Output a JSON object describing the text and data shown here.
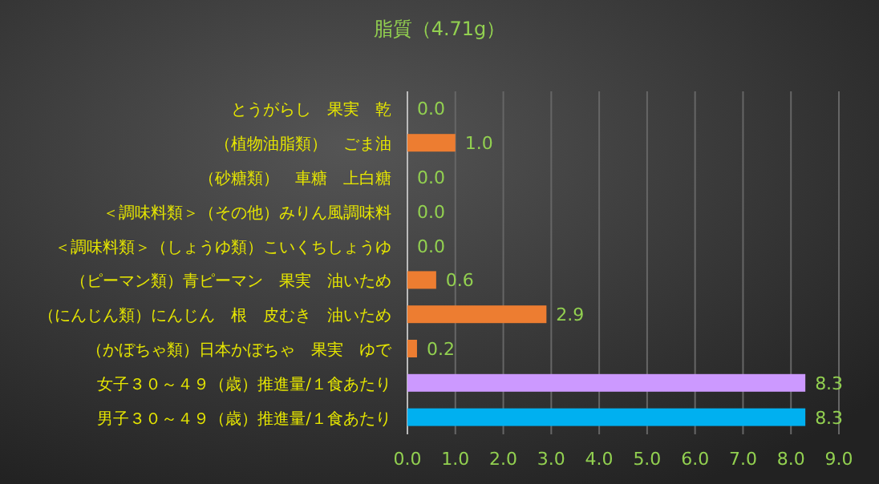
{
  "chart_data": {
    "type": "bar",
    "orientation": "horizontal",
    "title": "脂質（4.71g）",
    "categories": [
      "とうがらし　果実　乾",
      "（植物油脂類）　ごま油",
      "（砂糖類）　車糖　上白糖",
      "＜調味料類＞（その他）みりん風調味料",
      "＜調味料類＞（しょうゆ類）こいくちしょうゆ",
      "（ピーマン類）青ピーマン　果実　油いため",
      "（にんじん類）にんじん　根　皮むき　油いため",
      "（かぼちゃ類）日本かぼちゃ　果実　ゆで",
      "女子３０～４９（歳）推進量/１食あたり",
      "男子３０～４９（歳）推進量/１食あたり"
    ],
    "values": [
      0,
      1.0,
      0,
      0,
      0,
      0.6,
      2.9,
      0.2,
      8.3,
      8.3
    ],
    "colors": [
      "#ed7d31",
      "#ed7d31",
      "#ed7d31",
      "#ed7d31",
      "#ed7d31",
      "#ed7d31",
      "#ed7d31",
      "#ed7d31",
      "#cc99ff",
      "#00b0f0"
    ],
    "value_labels": [
      "0.0",
      "1.0",
      "0.0",
      "0.0",
      "0.0",
      "0.6",
      "2.9",
      "0.2",
      "8.3",
      "8.3"
    ],
    "xlim": [
      0,
      9
    ],
    "xticks": [
      {
        "value": 0,
        "label": "0.0"
      },
      {
        "value": 1,
        "label": "1.0"
      },
      {
        "value": 2,
        "label": "2.0"
      },
      {
        "value": 3,
        "label": "3.0"
      },
      {
        "value": 4,
        "label": "4.0"
      },
      {
        "value": 5,
        "label": "5.0"
      },
      {
        "value": 6,
        "label": "6.0"
      },
      {
        "value": 7,
        "label": "7.0"
      },
      {
        "value": 8,
        "label": "8.0"
      },
      {
        "value": 9,
        "label": "9.0"
      }
    ],
    "grid": "x"
  }
}
